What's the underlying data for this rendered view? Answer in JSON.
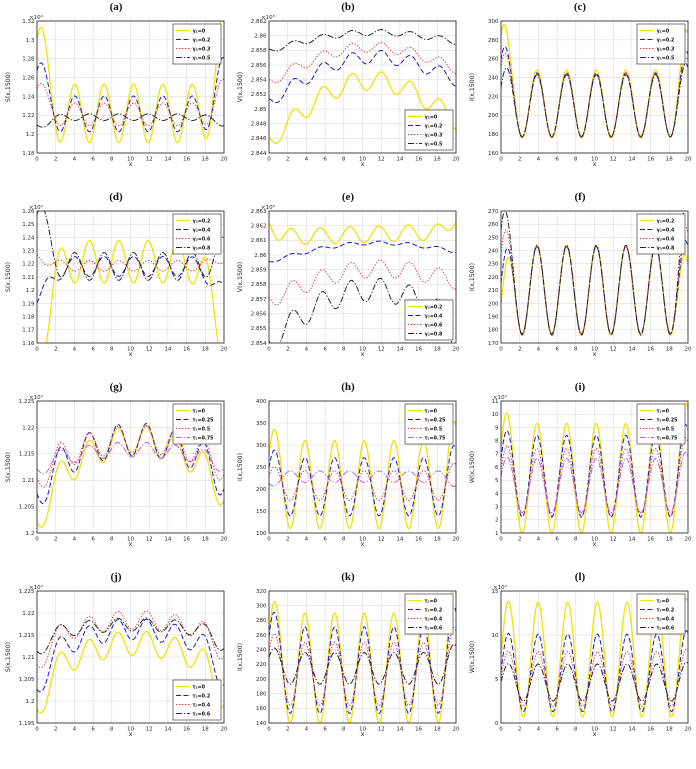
{
  "figure": {
    "description": "4x3 grid of MATLAB-style line plots of S, V, I, W versus x at t=1500 for varying parameters",
    "background": "#ffffff"
  },
  "style": {
    "grid_color": "#d6d6d6",
    "axis_color": "#333333",
    "tick_color": "#262626",
    "legend_border": "#444444",
    "series_colors": {
      "yellow": "#f2e106",
      "blue": "#1a1acc",
      "red": "#e83030",
      "black": "#262626",
      "magenta": "#bf5fd9"
    }
  },
  "chart_data": [
    {
      "id": "a",
      "title": "(a)",
      "type": "line",
      "xlabel": "x",
      "ylabel": "S(x,1500)",
      "exponent": "×10⁴",
      "xlim": [
        0,
        20
      ],
      "xstep": 2,
      "ylim": [
        1.18,
        1.32
      ],
      "ystep": 0.02,
      "ydec": 2,
      "legend": "top-right",
      "grid": true,
      "series": [
        {
          "label": "γ₁=0",
          "color": "#f2e106",
          "style": "solid",
          "width": 1.3,
          "base": 1.222,
          "amp": 0.031,
          "period": 3.14,
          "phase": 0.9,
          "edgeL": 0.085,
          "edgeR": 0.075,
          "edgeW": 1.1
        },
        {
          "label": "γ₁=0.2",
          "color": "#1a1acc",
          "style": "dashed",
          "width": 1.0,
          "base": 1.2215,
          "amp": 0.019,
          "period": 3.14,
          "phase": 0.9,
          "edgeL": 0.05,
          "edgeR": 0.042,
          "edgeW": 1.1
        },
        {
          "label": "γ₁=0.3",
          "color": "#e83030",
          "style": "dotted",
          "width": 1.0,
          "base": 1.221,
          "amp": 0.012,
          "period": 3.14,
          "phase": 0.9,
          "edgeL": 0.03,
          "edgeR": 0.026,
          "edgeW": 1.1
        },
        {
          "label": "γ₁=0.5",
          "color": "#262626",
          "style": "dashdot",
          "width": 1.0,
          "base": 1.218,
          "amp": -0.0035,
          "period": 3.14,
          "phase": 0.9,
          "edgeL": -0.009,
          "edgeR": -0.006,
          "edgeW": 1.5
        }
      ]
    },
    {
      "id": "b",
      "title": "(b)",
      "type": "line",
      "xlabel": "x",
      "ylabel": "V(x,1500)",
      "exponent": "×10⁵",
      "xlim": [
        0,
        20
      ],
      "xstep": 2,
      "ylim": [
        2.844,
        2.862
      ],
      "ystep": 0.002,
      "ydec": 3,
      "legend": "bottom-right",
      "grid": true,
      "series": [
        {
          "label": "γ₁=0",
          "color": "#f2e106",
          "style": "solid",
          "width": 1.3,
          "base": 2.847,
          "drift": 0.003,
          "arch": 0.0068,
          "amp": 0.0013,
          "period": 3.14,
          "phase": 2.6
        },
        {
          "label": "γ₁=0.2",
          "color": "#1a1acc",
          "style": "dashed",
          "width": 1.0,
          "base": 2.8525,
          "drift": 0.003,
          "arch": 0.0045,
          "amp": 0.0009,
          "period": 3.14,
          "phase": 2.6
        },
        {
          "label": "γ₁=0.3",
          "color": "#e83030",
          "style": "dotted",
          "width": 1.0,
          "base": 2.8546,
          "drift": 0.0018,
          "arch": 0.0038,
          "amp": 0.0007,
          "period": 3.14,
          "phase": 2.6
        },
        {
          "label": "γ₁=0.5",
          "color": "#262626",
          "style": "dashdot",
          "width": 1.0,
          "base": 2.8586,
          "drift": 0.0012,
          "arch": 0.0018,
          "amp": 0.0004,
          "period": 3.14,
          "phase": 2.6
        }
      ]
    },
    {
      "id": "c",
      "title": "(c)",
      "type": "line",
      "xlabel": "x",
      "ylabel": "I(x,1500)",
      "exponent": "",
      "xlim": [
        0,
        20
      ],
      "xstep": 2,
      "ylim": [
        160,
        300
      ],
      "ystep": 20,
      "ydec": 0,
      "legend": "top-right",
      "grid": true,
      "series": [
        {
          "label": "γ₁=0",
          "color": "#f2e106",
          "style": "solid",
          "width": 1.3,
          "base": 212,
          "amp": 36,
          "period": 3.17,
          "phase": 0.68,
          "edgeL": 65,
          "edgeR": 45,
          "edgeW": 0.9
        },
        {
          "label": "γ₁=0.2",
          "color": "#1a1acc",
          "style": "dashed",
          "width": 1.0,
          "base": 211,
          "amp": 34,
          "period": 3.17,
          "phase": 0.68,
          "edgeL": 40,
          "edgeR": 25,
          "edgeW": 0.9
        },
        {
          "label": "γ₁=0.3",
          "color": "#e83030",
          "style": "dotted",
          "width": 1.0,
          "base": 211,
          "amp": 33,
          "period": 3.17,
          "phase": 0.68,
          "edgeL": 32,
          "edgeR": 19,
          "edgeW": 0.9
        },
        {
          "label": "γ₁=0.5",
          "color": "#262626",
          "style": "dashdot",
          "width": 1.0,
          "base": 210,
          "amp": 33,
          "period": 3.17,
          "phase": 0.68,
          "edgeL": 12,
          "edgeR": 13,
          "edgeW": 0.9
        }
      ]
    },
    {
      "id": "d",
      "title": "(d)",
      "type": "line",
      "xlabel": "x",
      "ylabel": "S(x,1500)",
      "exponent": "×10⁴",
      "xlim": [
        0,
        20
      ],
      "xstep": 2,
      "ylim": [
        1.16,
        1.26
      ],
      "ystep": 0.01,
      "ydec": 2,
      "legend": "top-right",
      "grid": true,
      "series": [
        {
          "label": "γ₂=0.2",
          "color": "#f2e106",
          "style": "solid",
          "width": 1.3,
          "base": 1.2215,
          "amp": 0.016,
          "period": 3.14,
          "phase": 2.47,
          "edgeL": -0.068,
          "edgeR": -0.058,
          "edgeW": 1.6
        },
        {
          "label": "γ₂=0.4",
          "color": "#1a1acc",
          "style": "dashed",
          "width": 1.0,
          "base": 1.218,
          "amp": 0.0075,
          "period": 3.14,
          "phase": 0.9,
          "edgeL": -0.026,
          "edgeR": -0.02,
          "edgeW": 1.6
        },
        {
          "label": "γ₂=0.6",
          "color": "#e83030",
          "style": "dotted",
          "width": 1.0,
          "base": 1.2185,
          "amp": 0.004,
          "period": 3.14,
          "phase": 2.47,
          "edgeL": 0.0075,
          "edgeR": 0.006,
          "edgeW": 1.4
        },
        {
          "label": "γ₂=0.8",
          "color": "#262626",
          "style": "dashdot",
          "width": 1.0,
          "base": 1.218,
          "amp": 0.0105,
          "period": 3.14,
          "phase": 0.9,
          "edgeL": 0.042,
          "edgeR": 0.012,
          "edgeW": 1.5
        }
      ]
    },
    {
      "id": "e",
      "title": "(e)",
      "type": "line",
      "xlabel": "x",
      "ylabel": "V(x,1500)",
      "exponent": "×10⁵",
      "xlim": [
        0,
        20
      ],
      "xstep": 2,
      "ylim": [
        2.854,
        2.863
      ],
      "ystep": 0.001,
      "ydec": 3,
      "legend": "bottom-right",
      "grid": true,
      "series": [
        {
          "label": "γ₂=0.2",
          "color": "#f2e106",
          "style": "solid",
          "width": 1.3,
          "base": 2.8614,
          "drift": 0.0004,
          "arch": 0,
          "amp": 0.00055,
          "period": 3.14,
          "phase": 2.35,
          "edgeL": 0.001,
          "edgeR": 0.001,
          "edgeW": 0.9
        },
        {
          "label": "γ₂=0.4",
          "color": "#1a1acc",
          "style": "dashed",
          "width": 1.0,
          "base": 2.8599,
          "drift": 0.0007,
          "arch": 0.0009,
          "amp": 0.00012,
          "period": 3.14,
          "phase": 2.35
        },
        {
          "label": "γ₂=0.6",
          "color": "#e83030",
          "style": "dotted",
          "width": 1.0,
          "base": 2.8576,
          "drift": 0.0013,
          "arch": 0.0014,
          "amp": 0.0006,
          "period": 3.14,
          "phase": 2.5
        },
        {
          "label": "γ₂=0.8",
          "color": "#262626",
          "style": "dashdot",
          "width": 1.0,
          "base": 2.8549,
          "drift": 0.0014,
          "arch": 0.0027,
          "amp": 0.0008,
          "period": 3.14,
          "phase": 2.5,
          "edgeL": -0.0003,
          "edgeR": -0.0012,
          "edgeW": 1.0
        }
      ]
    },
    {
      "id": "f",
      "title": "(f)",
      "type": "line",
      "xlabel": "x",
      "ylabel": "I(x,1500)",
      "exponent": "",
      "xlim": [
        0,
        20
      ],
      "xstep": 2,
      "ylim": [
        170,
        270
      ],
      "ystep": 10,
      "ydec": 0,
      "legend": "top-right",
      "grid": true,
      "series": [
        {
          "label": "γ₂=0.2",
          "color": "#f2e106",
          "style": "solid",
          "width": 1.3,
          "base": 210,
          "amp": 34,
          "period": 3.17,
          "phase": 0.68,
          "edgeL": -18,
          "edgeR": -8,
          "edgeW": 0.9
        },
        {
          "label": "γ₂=0.4",
          "color": "#1a1acc",
          "style": "dashed",
          "width": 1.0,
          "base": 210,
          "amp": 33,
          "period": 3.17,
          "phase": 0.68,
          "edgeL": -2,
          "edgeR": 5,
          "edgeW": 0.9
        },
        {
          "label": "γ₂=0.6",
          "color": "#e83030",
          "style": "dotted",
          "width": 1.0,
          "base": 210,
          "amp": 33,
          "period": 3.17,
          "phase": 0.68,
          "edgeL": 20,
          "edgeR": 16,
          "edgeW": 0.9
        },
        {
          "label": "γ₂=0.8",
          "color": "#262626",
          "style": "dashdot",
          "width": 1.0,
          "base": 210,
          "amp": 34,
          "period": 3.17,
          "phase": 0.68,
          "edgeL": 38,
          "edgeR": 35,
          "edgeW": 0.9
        }
      ]
    },
    {
      "id": "g",
      "title": "(g)",
      "type": "line",
      "xlabel": "x",
      "ylabel": "S(x,1500)",
      "exponent": "×10⁴",
      "xlim": [
        0,
        20
      ],
      "xstep": 2,
      "ylim": [
        1.2,
        1.225
      ],
      "ystep": 0.005,
      "ydec": 3,
      "legend": "top-right",
      "grid": true,
      "series": [
        {
          "label": "τ₁=0",
          "color": "#f2e106",
          "style": "solid",
          "width": 1.3,
          "base": 1.2085,
          "drift": 0.003,
          "arch": 0.009,
          "amp": 0.0028,
          "period": 3.07,
          "phase": 2.5,
          "edgeL": -0.006,
          "edgeR": -0.003,
          "edgeW": 1.2
        },
        {
          "label": "τ₁=0.25",
          "color": "#1a1acc",
          "style": "dashed",
          "width": 1.0,
          "base": 1.2115,
          "drift": 0.0017,
          "arch": 0.0062,
          "amp": 0.0031,
          "period": 3.07,
          "phase": 2.5,
          "edgeL": -0.0044,
          "edgeR": -0.003,
          "edgeW": 1.2
        },
        {
          "label": "τ₁=0.5",
          "color": "#e83030",
          "style": "dotted",
          "width": 1.0,
          "base": 1.2133,
          "drift": 0.0013,
          "arch": 0.0045,
          "amp": 0.0026,
          "period": 3.07,
          "phase": 2.5,
          "edgeL": -0.0032,
          "edgeR": -0.002,
          "edgeW": 1.2
        },
        {
          "label": "τ₁=0.75",
          "color": "#bf5fd9",
          "style": "dashdot",
          "width": 1.0,
          "base": 1.2136,
          "drift": 0.0003,
          "arch": 0.0022,
          "amp": 0.0014,
          "period": 3.07,
          "phase": 2.5,
          "edgeL": -0.0018,
          "edgeR": -0.001,
          "edgeW": 1.2
        }
      ]
    },
    {
      "id": "h",
      "title": "(h)",
      "type": "line",
      "xlabel": "x",
      "ylabel": "I(x,1500)",
      "exponent": "",
      "xlim": [
        0,
        20
      ],
      "xstep": 2,
      "ylim": [
        100,
        400
      ],
      "ystep": 50,
      "ydec": 0,
      "legend": "top-right",
      "grid": true,
      "series": [
        {
          "label": "τ₁=0",
          "color": "#f2e106",
          "style": "solid",
          "width": 1.3,
          "base": 210,
          "amp": 100,
          "period": 3.17,
          "phase": 0.68,
          "edgeL": 42,
          "edgeR": 48,
          "edgeW": 0.9
        },
        {
          "label": "τ₁=0.25",
          "color": "#1a1acc",
          "style": "dashed",
          "width": 1.0,
          "base": 205,
          "amp": 66,
          "period": 3.17,
          "phase": 0.68,
          "edgeL": 28,
          "edgeR": 30,
          "edgeW": 0.9
        },
        {
          "label": "τ₁=0.5",
          "color": "#e83030",
          "style": "dotted",
          "width": 1.0,
          "base": 208,
          "amp": 34,
          "period": 3.17,
          "phase": 0.68,
          "edgeL": 13,
          "edgeR": 18,
          "edgeW": 0.9
        },
        {
          "label": "τ₁=0.75",
          "color": "#bf5fd9",
          "style": "dashdot",
          "width": 1.0,
          "base": 228,
          "amp": -13,
          "period": 3.17,
          "phase": 0.68,
          "edgeL": -12,
          "edgeR": -10,
          "edgeW": 0.9
        }
      ]
    },
    {
      "id": "i",
      "title": "(i)",
      "type": "line",
      "xlabel": "x",
      "ylabel": "W(x,1500)",
      "exponent": "×10⁴",
      "xlim": [
        0,
        20
      ],
      "xstep": 2,
      "ylim": [
        1,
        11
      ],
      "ystep": 1,
      "ydec": 0,
      "legend": "top-right",
      "grid": true,
      "series": [
        {
          "label": "τ₁=0",
          "color": "#f2e106",
          "style": "solid",
          "width": 1.3,
          "base": 5.15,
          "amp": 4.15,
          "period": 3.17,
          "phase": 0.68,
          "edgeL": 1.3,
          "edgeR": 1.7,
          "edgeW": 0.9
        },
        {
          "label": "τ₁=0.25",
          "color": "#1a1acc",
          "style": "dashed",
          "width": 1.0,
          "base": 5.3,
          "amp": 3.1,
          "period": 3.17,
          "phase": 0.68,
          "edgeL": 0.6,
          "edgeR": 0.9,
          "edgeW": 0.9
        },
        {
          "label": "τ₁=0.5",
          "color": "#e83030",
          "style": "dotted",
          "width": 1.0,
          "base": 4.85,
          "amp": 2.55,
          "period": 3.17,
          "phase": 0.68,
          "edgeL": 0.35,
          "edgeR": 0.9,
          "edgeW": 0.9
        },
        {
          "label": "τ₁=0.75",
          "color": "#bf5fd9",
          "style": "dashdot",
          "width": 1.0,
          "base": 4.6,
          "amp": 2.05,
          "period": 3.17,
          "phase": 0.68,
          "edgeL": 0.2,
          "edgeR": 0.5,
          "edgeW": 0.9
        }
      ]
    },
    {
      "id": "j",
      "title": "(j)",
      "type": "line",
      "xlabel": "x",
      "ylabel": "S(x,1500)",
      "exponent": "×10⁴",
      "xlim": [
        0,
        20
      ],
      "xstep": 2,
      "ylim": [
        1.195,
        1.225
      ],
      "ystep": 0.005,
      "ydec": 3,
      "legend": "bottom-right",
      "grid": true,
      "series": [
        {
          "label": "τ₂=0",
          "color": "#f2e106",
          "style": "solid",
          "width": 1.3,
          "base": 1.2063,
          "drift": 0.0015,
          "arch": 0.0068,
          "amp": 0.0028,
          "period": 3.07,
          "phase": 2.5,
          "edgeL": -0.0085,
          "edgeR": -0.007,
          "edgeW": 1.2
        },
        {
          "label": "τ₂=0.2",
          "color": "#1a1acc",
          "style": "dashed",
          "width": 1.0,
          "base": 1.2105,
          "drift": 0.0012,
          "arch": 0.0058,
          "amp": 0.0024,
          "period": 3.07,
          "phase": 2.5,
          "edgeL": -0.0081,
          "edgeR": -0.0065,
          "edgeW": 1.2
        },
        {
          "label": "τ₂=0.4",
          "color": "#e83030",
          "style": "dotted",
          "width": 1.0,
          "base": 1.2142,
          "drift": 0.0012,
          "arch": 0.0042,
          "amp": 0.0021,
          "period": 3.07,
          "phase": 2.5,
          "edgeL": -0.0061,
          "edgeR": -0.004,
          "edgeW": 1.2
        },
        {
          "label": "τ₂=0.6",
          "color": "#262626",
          "style": "dashdot",
          "width": 1.0,
          "base": 1.2152,
          "drift": 0.0005,
          "arch": 0.0022,
          "amp": 0.0015,
          "period": 3.07,
          "phase": 2.5,
          "edgeL": -0.0042,
          "edgeR": -0.003,
          "edgeW": 1.2
        }
      ]
    },
    {
      "id": "k",
      "title": "(k)",
      "type": "line",
      "xlabel": "x",
      "ylabel": "I(x,1500)",
      "exponent": "",
      "xlim": [
        0,
        20
      ],
      "xstep": 2,
      "ylim": [
        140,
        320
      ],
      "ystep": 20,
      "ydec": 0,
      "legend": "top-right",
      "grid": true,
      "series": [
        {
          "label": "τ₂=0",
          "color": "#f2e106",
          "style": "solid",
          "width": 1.3,
          "base": 215,
          "amp": 75,
          "period": 3.17,
          "phase": 0.68,
          "edgeL": 26,
          "edgeR": 40,
          "edgeW": 0.9
        },
        {
          "label": "τ₂=0.2",
          "color": "#1a1acc",
          "style": "dashed",
          "width": 1.0,
          "base": 212,
          "amp": 59,
          "period": 3.17,
          "phase": 0.68,
          "edgeL": 32,
          "edgeR": 30,
          "edgeW": 0.9
        },
        {
          "label": "τ₂=0.4",
          "color": "#e83030",
          "style": "dotted",
          "width": 1.0,
          "base": 207,
          "amp": 43,
          "period": 3.17,
          "phase": 0.68,
          "edgeL": 19,
          "edgeR": 22,
          "edgeW": 0.9
        },
        {
          "label": "τ₂=0.6",
          "color": "#262626",
          "style": "dashdot",
          "width": 1.0,
          "base": 214.5,
          "amp": 21.5,
          "period": 3.17,
          "phase": 0.68,
          "edgeL": 10,
          "edgeR": 12,
          "edgeW": 0.9
        }
      ]
    },
    {
      "id": "l",
      "title": "(l)",
      "type": "line",
      "xlabel": "x",
      "ylabel": "W(x,1500)",
      "exponent": "×10⁴",
      "xlim": [
        0,
        20
      ],
      "xstep": 2,
      "ylim": [
        0,
        15
      ],
      "ystep": 5,
      "ydec": 0,
      "legend": "top-right",
      "grid": true,
      "series": [
        {
          "label": "τ₂=0",
          "color": "#f2e106",
          "style": "solid",
          "width": 1.3,
          "base": 7.2,
          "amp": 6.5,
          "period": 3.17,
          "phase": 0.8,
          "edgeL": 0.3,
          "edgeR": 0.5,
          "edgeW": 0.9
        },
        {
          "label": "τ₂=0.2",
          "color": "#1a1acc",
          "style": "dashed",
          "width": 1.0,
          "base": 5.7,
          "amp": 4.4,
          "period": 3.17,
          "phase": 0.8,
          "edgeL": 0.2,
          "edgeR": 0.4,
          "edgeW": 0.9
        },
        {
          "label": "τ₂=0.4",
          "color": "#e83030",
          "style": "dotted",
          "width": 1.0,
          "base": 5.0,
          "amp": 3.1,
          "period": 3.17,
          "phase": 0.8,
          "edgeL": 0.15,
          "edgeR": 0.3,
          "edgeW": 0.9
        },
        {
          "label": "τ₂=0.6",
          "color": "#262626",
          "style": "dashdot",
          "width": 1.0,
          "base": 4.6,
          "amp": 2.1,
          "period": 3.17,
          "phase": 0.8,
          "edgeL": 0.1,
          "edgeR": 0.2,
          "edgeW": 0.9
        }
      ]
    }
  ]
}
